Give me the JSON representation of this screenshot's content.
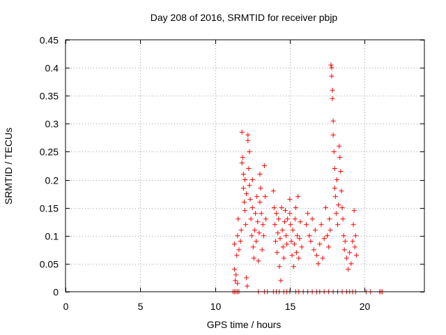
{
  "chart_data": {
    "type": "scatter",
    "title": "Day 208 of 2016, SRMTID for receiver pbjp",
    "xlabel": "GPS time / hours",
    "ylabel": "SRMTID / TECUs",
    "xlim": [
      0,
      24
    ],
    "ylim": [
      0,
      0.45
    ],
    "xticks": [
      0,
      5,
      10,
      15,
      20
    ],
    "yticks": [
      0,
      0.05,
      0.1,
      0.15,
      0.2,
      0.25,
      0.3,
      0.35,
      0.4,
      0.45
    ],
    "xtick_labels": [
      "0",
      "5",
      "10",
      "15",
      "20"
    ],
    "ytick_labels": [
      "0",
      "0.05",
      "0.1",
      "0.15",
      "0.2",
      "0.25",
      "0.3",
      "0.35",
      "0.4",
      "0.45"
    ],
    "grid": true,
    "marker": "+",
    "color": "#ff0000",
    "series": [
      {
        "name": "SRMTID",
        "points": [
          [
            11.2,
            0
          ],
          [
            11.3,
            0
          ],
          [
            11.4,
            0
          ],
          [
            11.5,
            0
          ],
          [
            11.6,
            0
          ],
          [
            12.9,
            0
          ],
          [
            13.3,
            0
          ],
          [
            13.5,
            0
          ],
          [
            13.9,
            0
          ],
          [
            14.1,
            0
          ],
          [
            14.3,
            0
          ],
          [
            14.6,
            0
          ],
          [
            14.8,
            0
          ],
          [
            15.0,
            0
          ],
          [
            15.4,
            0
          ],
          [
            15.6,
            0
          ],
          [
            15.9,
            0
          ],
          [
            16.2,
            0
          ],
          [
            16.5,
            0
          ],
          [
            16.8,
            0
          ],
          [
            17.0,
            0
          ],
          [
            17.3,
            0
          ],
          [
            17.6,
            0
          ],
          [
            17.9,
            0
          ],
          [
            18.2,
            0
          ],
          [
            18.5,
            0
          ],
          [
            18.8,
            0
          ],
          [
            19.0,
            0
          ],
          [
            19.2,
            0
          ],
          [
            19.4,
            0
          ],
          [
            20.1,
            0
          ],
          [
            20.4,
            0
          ],
          [
            21.0,
            0
          ],
          [
            21.1,
            0
          ],
          [
            21.2,
            0
          ],
          [
            11.3,
            0.085
          ],
          [
            11.3,
            0.04
          ],
          [
            11.35,
            0.02
          ],
          [
            11.4,
            0.03
          ],
          [
            11.45,
            0.065
          ],
          [
            11.5,
            0.1
          ],
          [
            11.5,
            0.015
          ],
          [
            11.55,
            0.13
          ],
          [
            11.6,
            0.075
          ],
          [
            11.7,
            0.09
          ],
          [
            11.75,
            0.11
          ],
          [
            11.8,
            0.23
          ],
          [
            11.8,
            0.285
          ],
          [
            11.85,
            0.24
          ],
          [
            11.9,
            0.21
          ],
          [
            11.9,
            0.185
          ],
          [
            11.95,
            0.16
          ],
          [
            12.0,
            0.145
          ],
          [
            12.0,
            0.2
          ],
          [
            12.05,
            0.12
          ],
          [
            12.1,
            0.175
          ],
          [
            12.1,
            0.025
          ],
          [
            12.15,
            0.01
          ],
          [
            12.2,
            0.27
          ],
          [
            12.2,
            0.28
          ],
          [
            12.25,
            0.22
          ],
          [
            12.3,
            0.19
          ],
          [
            12.3,
            0.25
          ],
          [
            12.35,
            0.165
          ],
          [
            12.4,
            0.13
          ],
          [
            12.45,
            0.1
          ],
          [
            12.5,
            0.15
          ],
          [
            12.5,
            0.2
          ],
          [
            12.55,
            0.08
          ],
          [
            12.6,
            0.06
          ],
          [
            12.65,
            0.11
          ],
          [
            12.7,
            0.14
          ],
          [
            12.75,
            0.09
          ],
          [
            12.8,
            0.17
          ],
          [
            12.85,
            0.125
          ],
          [
            12.9,
            0.055
          ],
          [
            12.95,
            0.105
          ],
          [
            13.0,
            0.16
          ],
          [
            13.0,
            0.21
          ],
          [
            13.05,
            0.185
          ],
          [
            13.1,
            0.14
          ],
          [
            13.15,
            0.075
          ],
          [
            13.2,
            0.12
          ],
          [
            13.25,
            0.1
          ],
          [
            13.3,
            0.225
          ],
          [
            13.35,
            0.17
          ],
          [
            13.4,
            0.13
          ],
          [
            13.9,
            0.18
          ],
          [
            13.95,
            0.15
          ],
          [
            14.0,
            0.12
          ],
          [
            14.05,
            0.09
          ],
          [
            14.1,
            0.14
          ],
          [
            14.15,
            0.07
          ],
          [
            14.2,
            0.105
          ],
          [
            14.25,
            0.13
          ],
          [
            14.3,
            0.045
          ],
          [
            14.35,
            0.095
          ],
          [
            14.4,
            0.02
          ],
          [
            14.45,
            0.15
          ],
          [
            14.5,
            0.11
          ],
          [
            14.55,
            0.08
          ],
          [
            14.6,
            0.06
          ],
          [
            14.65,
            0.125
          ],
          [
            14.7,
            0.145
          ],
          [
            14.75,
            0.1
          ],
          [
            14.8,
            0.085
          ],
          [
            14.85,
            0.13
          ],
          [
            15.0,
            0.165
          ],
          [
            15.0,
            0.14
          ],
          [
            15.05,
            0.12
          ],
          [
            15.1,
            0.09
          ],
          [
            15.15,
            0.065
          ],
          [
            15.2,
            0.11
          ],
          [
            15.25,
            0.045
          ],
          [
            15.3,
            0.085
          ],
          [
            15.35,
            0.13
          ],
          [
            15.4,
            0.15
          ],
          [
            15.45,
            0.07
          ],
          [
            15.5,
            0.1
          ],
          [
            15.55,
            0.17
          ],
          [
            15.6,
            0.06
          ],
          [
            15.65,
            0.095
          ],
          [
            15.7,
            0.125
          ],
          [
            15.8,
            0.08
          ],
          [
            16.1,
            0.12
          ],
          [
            16.2,
            0.14
          ],
          [
            16.3,
            0.1
          ],
          [
            16.4,
            0.09
          ],
          [
            16.5,
            0.13
          ],
          [
            16.6,
            0.075
          ],
          [
            16.7,
            0.11
          ],
          [
            16.8,
            0.065
          ],
          [
            16.9,
            0.05
          ],
          [
            17.0,
            0.085
          ],
          [
            17.1,
            0.12
          ],
          [
            17.2,
            0.06
          ],
          [
            17.3,
            0.095
          ],
          [
            17.4,
            0.15
          ],
          [
            17.5,
            0.1
          ],
          [
            17.6,
            0.08
          ],
          [
            17.65,
            0.13
          ],
          [
            17.7,
            0.11
          ],
          [
            17.75,
            0.405
          ],
          [
            17.8,
            0.4
          ],
          [
            17.8,
            0.385
          ],
          [
            17.85,
            0.36
          ],
          [
            17.85,
            0.345
          ],
          [
            17.9,
            0.305
          ],
          [
            17.9,
            0.28
          ],
          [
            17.95,
            0.25
          ],
          [
            18.0,
            0.22
          ],
          [
            18.0,
            0.185
          ],
          [
            18.05,
            0.17
          ],
          [
            18.1,
            0.14
          ],
          [
            18.15,
            0.2
          ],
          [
            18.2,
            0.12
          ],
          [
            18.25,
            0.155
          ],
          [
            18.3,
            0.26
          ],
          [
            18.35,
            0.24
          ],
          [
            18.4,
            0.215
          ],
          [
            18.45,
            0.18
          ],
          [
            18.5,
            0.15
          ],
          [
            18.55,
            0.13
          ],
          [
            18.6,
            0.1
          ],
          [
            18.65,
            0.075
          ],
          [
            18.7,
            0.09
          ],
          [
            18.8,
            0.06
          ],
          [
            18.9,
            0.04
          ],
          [
            19.0,
            0.07
          ],
          [
            19.1,
            0.05
          ],
          [
            19.2,
            0.09
          ],
          [
            19.25,
            0.12
          ],
          [
            19.3,
            0.145
          ],
          [
            19.35,
            0.08
          ],
          [
            19.4,
            0.1
          ],
          [
            19.45,
            0.065
          ]
        ]
      }
    ]
  }
}
